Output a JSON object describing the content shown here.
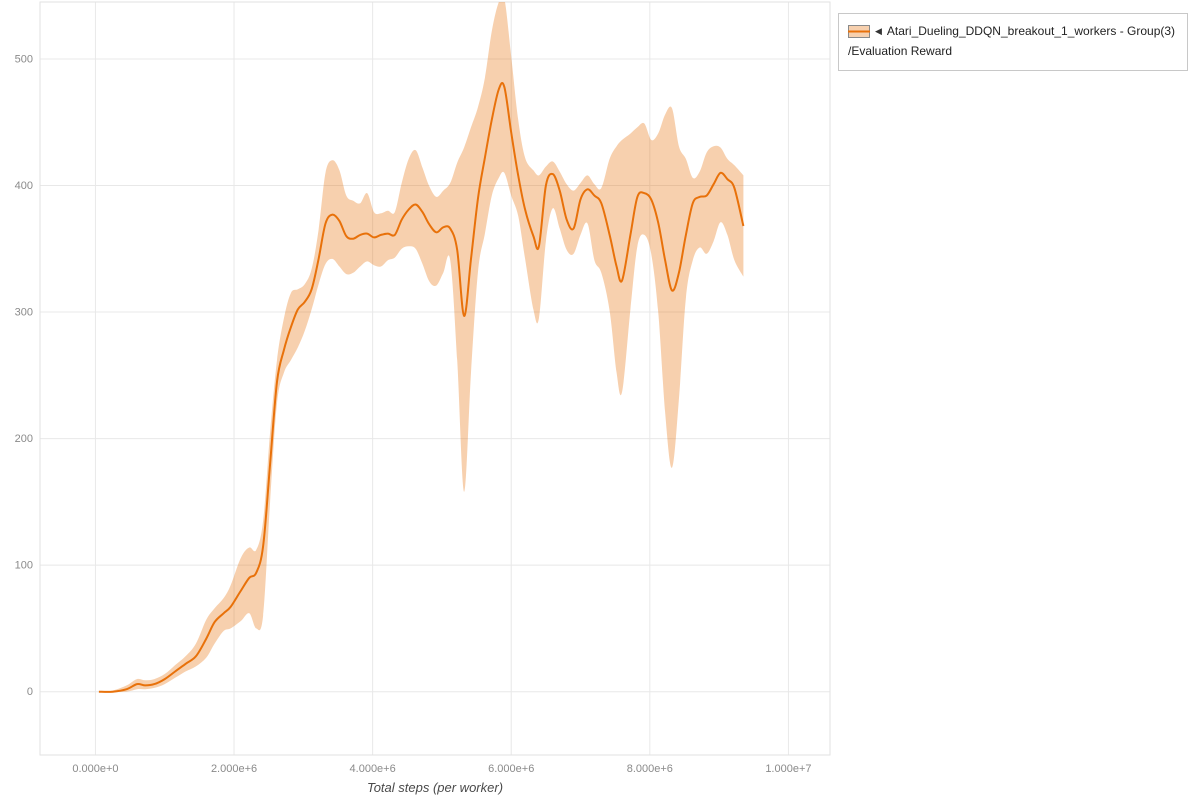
{
  "legend": {
    "collapse_icon": "◀",
    "series_name": "Atari_Dueling_DDQN_breakout_1_workers - Group(3)",
    "metric_name": "/Evaluation Reward"
  },
  "chart_data": {
    "type": "line",
    "title": "",
    "xlabel": "Total steps (per worker)",
    "ylabel": "",
    "xlim": [
      -800000,
      10600000
    ],
    "ylim": [
      -50,
      545
    ],
    "grid": true,
    "legend_position": "top-right",
    "xticks": [
      {
        "value": 0,
        "label": "0.000e+0"
      },
      {
        "value": 2000000,
        "label": "2.000e+6"
      },
      {
        "value": 4000000,
        "label": "4.000e+6"
      },
      {
        "value": 6000000,
        "label": "6.000e+6"
      },
      {
        "value": 8000000,
        "label": "8.000e+6"
      },
      {
        "value": 10000000,
        "label": "1.000e+7"
      }
    ],
    "yticks": [
      {
        "value": 0,
        "label": "0"
      },
      {
        "value": 100,
        "label": "100"
      },
      {
        "value": 200,
        "label": "200"
      },
      {
        "value": 300,
        "label": "300"
      },
      {
        "value": 400,
        "label": "400"
      },
      {
        "value": 500,
        "label": "500"
      }
    ],
    "series": [
      {
        "name": "Atari_Dueling_DDQN_breakout_1_workers - Group(3)/Evaluation Reward",
        "color": "#e8710a",
        "band_opacity": 0.33,
        "x": [
          50000,
          250000,
          450000,
          600000,
          720000,
          850000,
          1000000,
          1150000,
          1300000,
          1450000,
          1600000,
          1720000,
          1850000,
          1950000,
          2100000,
          2220000,
          2320000,
          2420000,
          2520000,
          2620000,
          2720000,
          2820000,
          2920000,
          3020000,
          3120000,
          3220000,
          3320000,
          3420000,
          3520000,
          3620000,
          3720000,
          3820000,
          3920000,
          4020000,
          4120000,
          4220000,
          4320000,
          4420000,
          4520000,
          4620000,
          4720000,
          4820000,
          4920000,
          5020000,
          5120000,
          5220000,
          5320000,
          5420000,
          5520000,
          5620000,
          5720000,
          5820000,
          5900000,
          6000000,
          6100000,
          6200000,
          6320000,
          6400000,
          6500000,
          6600000,
          6700000,
          6800000,
          6900000,
          7000000,
          7100000,
          7200000,
          7300000,
          7420000,
          7520000,
          7600000,
          7720000,
          7820000,
          7920000,
          8020000,
          8120000,
          8220000,
          8320000,
          8420000,
          8520000,
          8620000,
          8720000,
          8820000,
          8920000,
          9020000,
          9120000,
          9220000,
          9350000
        ],
        "mean": [
          0,
          0,
          2,
          6,
          5,
          6,
          10,
          16,
          22,
          28,
          42,
          55,
          62,
          67,
          80,
          90,
          94,
          115,
          180,
          245,
          270,
          288,
          302,
          308,
          318,
          342,
          370,
          377,
          372,
          360,
          358,
          361,
          362,
          359,
          361,
          362,
          361,
          373,
          381,
          385,
          379,
          369,
          363,
          367,
          366,
          349,
          297,
          342,
          390,
          422,
          452,
          476,
          478,
          442,
          408,
          381,
          360,
          352,
          400,
          409,
          396,
          373,
          366,
          389,
          397,
          392,
          386,
          361,
          336,
          325,
          361,
          391,
          394,
          389,
          371,
          341,
          317,
          331,
          361,
          386,
          391,
          392,
          401,
          410,
          405,
          398,
          368
        ],
        "lower": [
          0,
          0,
          0,
          2,
          2,
          3,
          6,
          11,
          16,
          20,
          27,
          38,
          48,
          50,
          56,
          62,
          50,
          60,
          150,
          228,
          252,
          262,
          272,
          285,
          302,
          322,
          338,
          342,
          336,
          330,
          331,
          336,
          340,
          337,
          336,
          341,
          343,
          350,
          352,
          350,
          338,
          324,
          321,
          331,
          341,
          262,
          158,
          252,
          332,
          362,
          392,
          406,
          410,
          392,
          376,
          342,
          302,
          295,
          356,
          382,
          366,
          349,
          346,
          361,
          370,
          341,
          331,
          301,
          252,
          237,
          302,
          352,
          361,
          346,
          301,
          221,
          177,
          231,
          311,
          341,
          351,
          346,
          356,
          371,
          361,
          341,
          328
        ],
        "upper": [
          0,
          1,
          5,
          10,
          9,
          10,
          14,
          21,
          28,
          38,
          57,
          66,
          74,
          84,
          106,
          114,
          112,
          135,
          205,
          262,
          295,
          315,
          318,
          322,
          334,
          365,
          410,
          420,
          412,
          392,
          388,
          386,
          394,
          379,
          378,
          380,
          379,
          402,
          421,
          428,
          414,
          399,
          391,
          396,
          402,
          418,
          430,
          446,
          462,
          485,
          522,
          545,
          548,
          502,
          452,
          422,
          412,
          408,
          415,
          419,
          411,
          401,
          396,
          402,
          408,
          401,
          398,
          421,
          431,
          436,
          441,
          446,
          449,
          436,
          441,
          456,
          461,
          431,
          421,
          406,
          411,
          426,
          431,
          430,
          421,
          416,
          408
        ]
      }
    ]
  }
}
